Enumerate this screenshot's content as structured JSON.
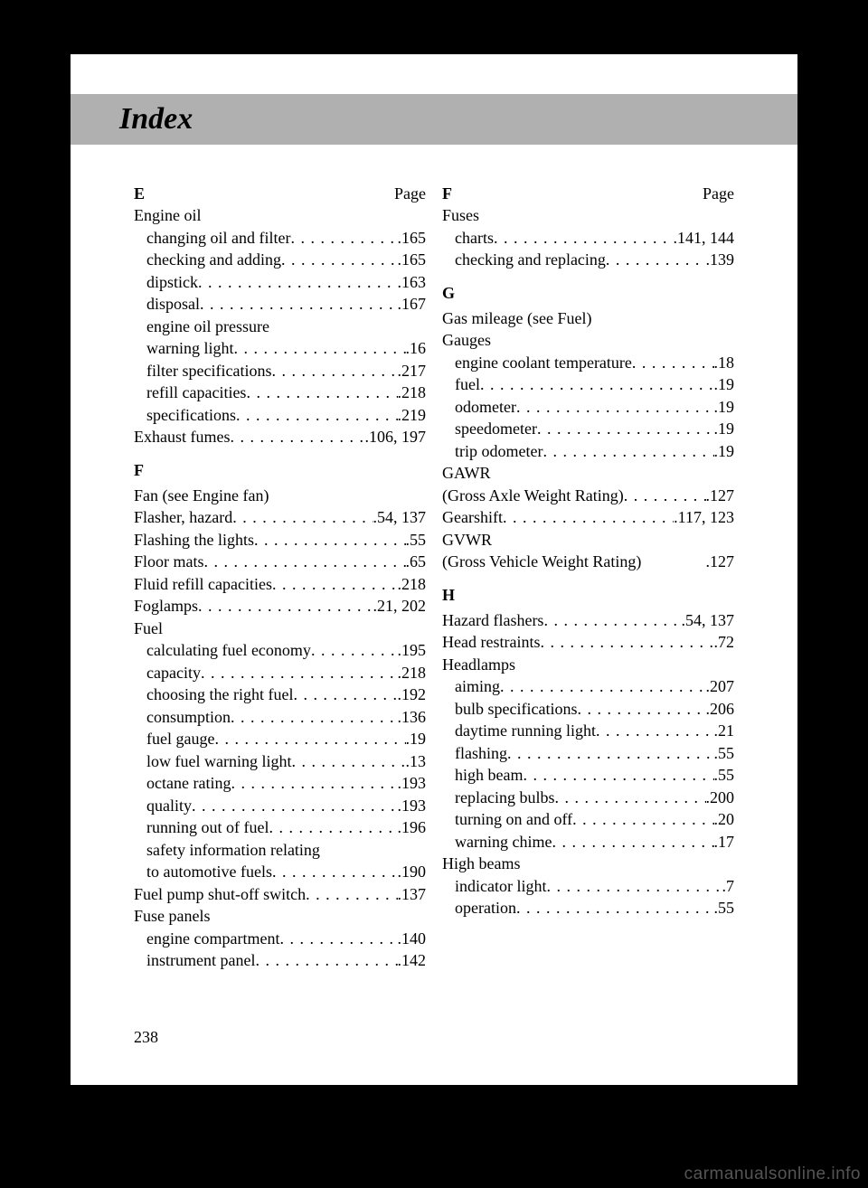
{
  "header": {
    "title": "Index",
    "page_label": "Page"
  },
  "page_number": "238",
  "watermark": "carmanualsonline.info",
  "left": [
    {
      "type": "letter",
      "letter": "E",
      "show_page": true
    },
    {
      "type": "plain",
      "label": "Engine oil"
    },
    {
      "type": "entry",
      "indent": true,
      "label": "changing oil and filter",
      "page": "165"
    },
    {
      "type": "entry",
      "indent": true,
      "label": "checking and adding",
      "page": "165"
    },
    {
      "type": "entry",
      "indent": true,
      "label": "dipstick",
      "page": "163"
    },
    {
      "type": "entry",
      "indent": true,
      "label": "disposal",
      "page": "167"
    },
    {
      "type": "plain",
      "indent": true,
      "label": "engine oil pressure"
    },
    {
      "type": "entry",
      "indent": true,
      "label": "warning light",
      "page": "16"
    },
    {
      "type": "entry",
      "indent": true,
      "label": "filter specifications",
      "page": "217"
    },
    {
      "type": "entry",
      "indent": true,
      "label": "refill capacities",
      "page": "218"
    },
    {
      "type": "entry",
      "indent": true,
      "label": "specifications",
      "page": "219"
    },
    {
      "type": "entry",
      "label": "Exhaust fumes",
      "page": "106, 197"
    },
    {
      "type": "letter",
      "letter": "F",
      "solo": true
    },
    {
      "type": "plain",
      "label": "Fan (see Engine fan)"
    },
    {
      "type": "entry",
      "label": "Flasher, hazard",
      "page": "54, 137"
    },
    {
      "type": "entry",
      "label": "Flashing the lights",
      "page": "55"
    },
    {
      "type": "entry",
      "label": "Floor mats",
      "page": "65"
    },
    {
      "type": "entry",
      "label": "Fluid refill capacities",
      "page": "218"
    },
    {
      "type": "entry",
      "label": "Foglamps",
      "page": "21, 202"
    },
    {
      "type": "plain",
      "label": "Fuel"
    },
    {
      "type": "entry",
      "indent": true,
      "label": "calculating fuel economy",
      "page": "195"
    },
    {
      "type": "entry",
      "indent": true,
      "label": "capacity",
      "page": "218"
    },
    {
      "type": "entry",
      "indent": true,
      "label": "choosing the right fuel",
      "page": "192"
    },
    {
      "type": "entry",
      "indent": true,
      "label": "consumption",
      "page": "136"
    },
    {
      "type": "entry",
      "indent": true,
      "label": "fuel gauge",
      "page": "19"
    },
    {
      "type": "entry",
      "indent": true,
      "label": "low fuel warning light",
      "page": "13"
    },
    {
      "type": "entry",
      "indent": true,
      "label": "octane rating",
      "page": "193"
    },
    {
      "type": "entry",
      "indent": true,
      "label": "quality",
      "page": "193"
    },
    {
      "type": "entry",
      "indent": true,
      "label": "running out of fuel",
      "page": "196"
    },
    {
      "type": "plain",
      "indent": true,
      "label": "safety information relating"
    },
    {
      "type": "entry",
      "indent": true,
      "label": "to automotive fuels",
      "page": "190"
    },
    {
      "type": "entry",
      "label": "Fuel pump shut-off switch",
      "page": "137"
    },
    {
      "type": "plain",
      "label": "Fuse panels"
    },
    {
      "type": "entry",
      "indent": true,
      "label": "engine compartment",
      "page": "140"
    },
    {
      "type": "entry",
      "indent": true,
      "label": "instrument panel",
      "page": "142"
    }
  ],
  "right": [
    {
      "type": "letter",
      "letter": "F",
      "show_page": true
    },
    {
      "type": "plain",
      "label": "Fuses"
    },
    {
      "type": "entry",
      "indent": true,
      "label": "charts",
      "page": "141, 144"
    },
    {
      "type": "entry",
      "indent": true,
      "label": "checking and replacing",
      "page": "139"
    },
    {
      "type": "letter",
      "letter": "G",
      "solo": true
    },
    {
      "type": "plain",
      "label": "Gas mileage (see Fuel)"
    },
    {
      "type": "plain",
      "label": "Gauges"
    },
    {
      "type": "entry",
      "indent": true,
      "label": "engine coolant temperature",
      "page": "18"
    },
    {
      "type": "entry",
      "indent": true,
      "label": "fuel",
      "page": "19"
    },
    {
      "type": "entry",
      "indent": true,
      "label": "odometer",
      "page": "19"
    },
    {
      "type": "entry",
      "indent": true,
      "label": "speedometer",
      "page": "19"
    },
    {
      "type": "entry",
      "indent": true,
      "label": "trip odometer",
      "page": "19"
    },
    {
      "type": "plain",
      "label": "GAWR"
    },
    {
      "type": "entry",
      "label": "(Gross Axle Weight Rating)",
      "page": "127"
    },
    {
      "type": "entry",
      "label": "Gearshift",
      "page": "117, 123"
    },
    {
      "type": "plain",
      "label": "GVWR"
    },
    {
      "type": "entry",
      "label": "(Gross Vehicle Weight Rating)",
      "page": "127",
      "nodots": true,
      "gap": " "
    },
    {
      "type": "letter",
      "letter": "H",
      "solo": true
    },
    {
      "type": "entry",
      "label": "Hazard flashers",
      "page": "54, 137"
    },
    {
      "type": "entry",
      "label": "Head restraints",
      "page": "72"
    },
    {
      "type": "plain",
      "label": "Headlamps"
    },
    {
      "type": "entry",
      "indent": true,
      "label": "aiming",
      "page": "207"
    },
    {
      "type": "entry",
      "indent": true,
      "label": "bulb specifications",
      "page": "206"
    },
    {
      "type": "entry",
      "indent": true,
      "label": "daytime running light",
      "page": "21"
    },
    {
      "type": "entry",
      "indent": true,
      "label": "flashing",
      "page": "55"
    },
    {
      "type": "entry",
      "indent": true,
      "label": "high beam",
      "page": "55"
    },
    {
      "type": "entry",
      "indent": true,
      "label": "replacing bulbs",
      "page": "200"
    },
    {
      "type": "entry",
      "indent": true,
      "label": "turning on and off",
      "page": "20"
    },
    {
      "type": "entry",
      "indent": true,
      "label": "warning chime",
      "page": "17"
    },
    {
      "type": "plain",
      "label": "High beams"
    },
    {
      "type": "entry",
      "indent": true,
      "label": "indicator light",
      "page": "7"
    },
    {
      "type": "entry",
      "indent": true,
      "label": "operation",
      "page": "55"
    }
  ]
}
